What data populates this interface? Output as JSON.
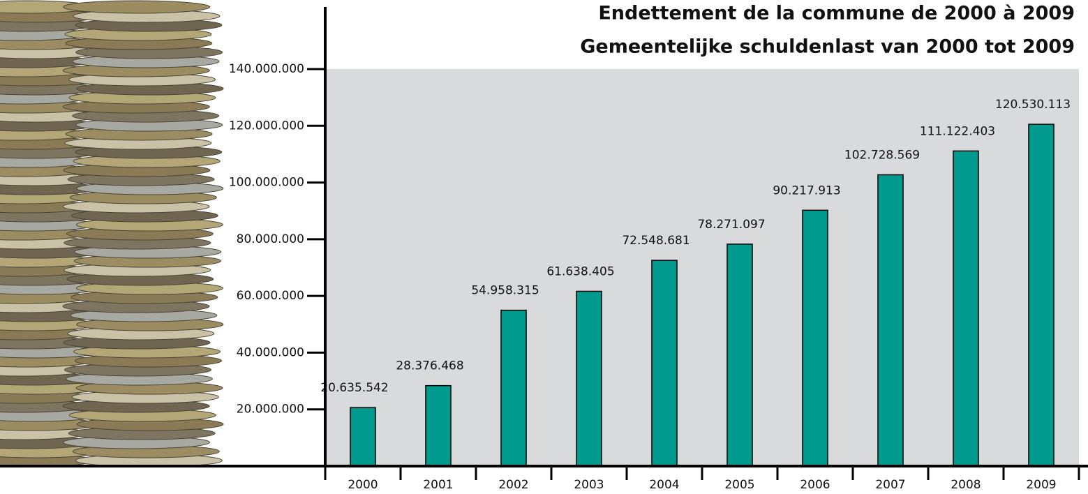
{
  "chart_data": {
    "type": "bar",
    "title": "Endettement de la commune de 2000 à 2009",
    "subtitle": "Gemeentelijke schuldenlast van 2000 tot 2009",
    "categories": [
      "2000",
      "2001",
      "2002",
      "2003",
      "2004",
      "2005",
      "2006",
      "2007",
      "2008",
      "2009"
    ],
    "values": [
      20635542,
      28376468,
      54958315,
      61638405,
      72548681,
      78271097,
      90217913,
      102728569,
      111122403,
      120530113
    ],
    "value_labels": [
      "20.635.542",
      "28.376.468",
      "54.958.315",
      "61.638.405",
      "72.548.681",
      "78.271.097",
      "90.217.913",
      "102.728.569",
      "111.122.403",
      "120.530.113"
    ],
    "color": "#009a8e",
    "ylim": [
      0,
      140000000
    ],
    "yticks": [
      {
        "value": 20000000,
        "label": "20.000.000"
      },
      {
        "value": 40000000,
        "label": "40.000.000"
      },
      {
        "value": 60000000,
        "label": "60.000.000"
      },
      {
        "value": 80000000,
        "label": "80.000.000"
      },
      {
        "value": 100000000,
        "label": "100.000.000"
      },
      {
        "value": 120000000,
        "label": "120.000.000"
      },
      {
        "value": 140000000,
        "label": "140.000.000"
      }
    ],
    "grid": false
  }
}
